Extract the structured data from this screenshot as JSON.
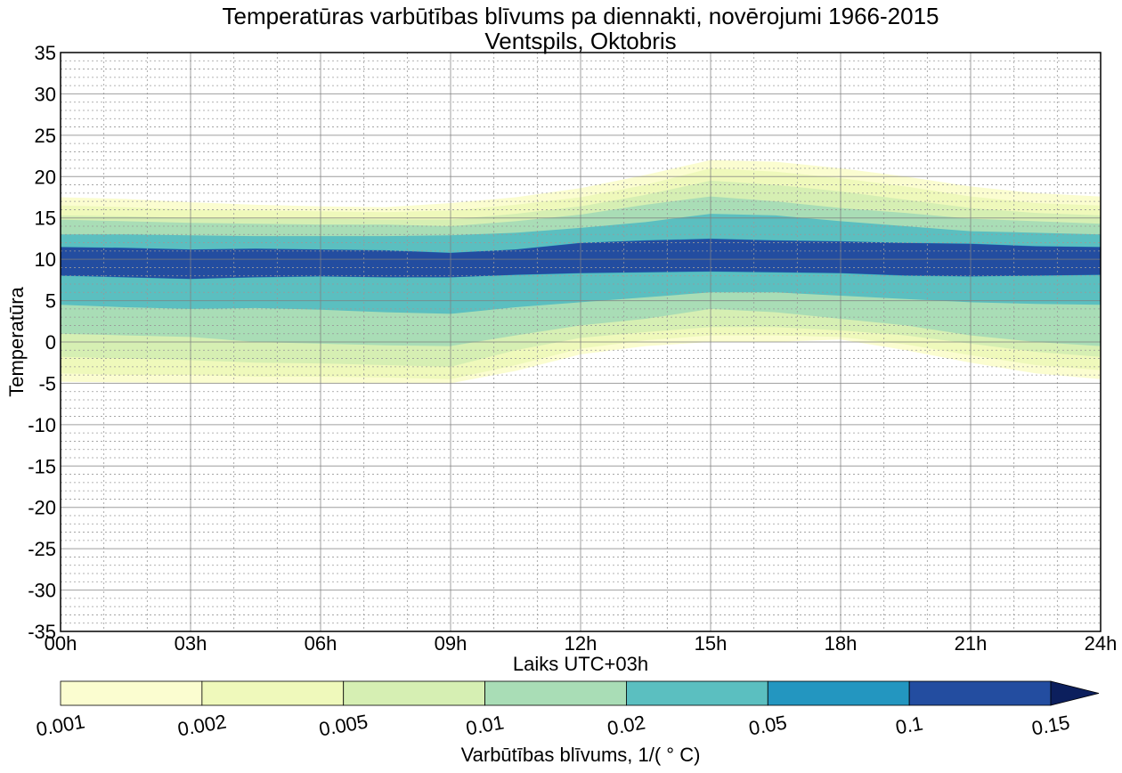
{
  "chart_data": {
    "type": "contourf",
    "title": "Temperatūras varbūtības blīvums pa diennakti, novērojumi 1966-2015",
    "subtitle": "Ventspils, Oktobris",
    "xlabel": "Laiks UTC+03h",
    "ylabel": "Temperatūra",
    "xlim": [
      0,
      24
    ],
    "ylim": [
      -35,
      35
    ],
    "x_ticks": [
      0,
      3,
      6,
      9,
      12,
      15,
      18,
      21,
      24
    ],
    "x_tick_labels": [
      "00h",
      "03h",
      "06h",
      "09h",
      "12h",
      "15h",
      "18h",
      "21h",
      "24h"
    ],
    "y_ticks": [
      -35,
      -30,
      -25,
      -20,
      -15,
      -10,
      -5,
      0,
      5,
      10,
      15,
      20,
      25,
      30,
      35
    ],
    "y_tick_labels": [
      "-35",
      "-30",
      "-25",
      "-20",
      "-15",
      "-10",
      "-5",
      "0",
      "5",
      "10",
      "15",
      "20",
      "25",
      "30",
      "35"
    ],
    "grid": "major solid, minor dotted",
    "colorbar": {
      "label": "Varbūtības blīvums, 1/( ° C)",
      "levels": [
        0.001,
        0.002,
        0.005,
        0.01,
        0.02,
        0.05,
        0.1,
        0.15
      ],
      "tick_labels": [
        "0.001",
        "0.002",
        "0.005",
        "0.01",
        "0.02",
        "0.05",
        "0.1",
        "0.15"
      ],
      "colors": [
        "#fbfdd0",
        "#eff9bb",
        "#d6efb3",
        "#a9ddb6",
        "#5bbfc0",
        "#2396c0",
        "#234da0"
      ],
      "extend_color": "#0c1f5d",
      "orientation": "horizontal",
      "placement": "bottom"
    },
    "times_h": [
      0,
      1.5,
      3,
      4.5,
      6,
      7.5,
      9,
      10.5,
      12,
      13.5,
      15,
      16.5,
      18,
      19.5,
      21,
      22.5,
      24
    ],
    "contour_bounds": [
      {
        "level": 0.001,
        "upper": [
          17.5,
          17.3,
          16.9,
          16.6,
          16.4,
          16.3,
          16.8,
          17.5,
          18.6,
          20.2,
          22.0,
          21.8,
          21.0,
          20.0,
          18.8,
          18.0,
          17.6
        ],
        "lower": [
          -4.8,
          -4.9,
          -5.0,
          -5.0,
          -5.0,
          -5.0,
          -5.0,
          -3.5,
          -1.5,
          -0.5,
          0.0,
          0.0,
          0.3,
          -1.0,
          -2.5,
          -3.8,
          -4.5
        ]
      },
      {
        "level": 0.002,
        "upper": [
          16.5,
          16.3,
          16.0,
          15.9,
          15.8,
          15.7,
          15.9,
          16.6,
          17.5,
          19.0,
          21.0,
          20.6,
          19.8,
          18.8,
          17.6,
          16.8,
          16.5
        ],
        "lower": [
          -3.8,
          -4.0,
          -4.0,
          -4.2,
          -4.2,
          -4.3,
          -4.5,
          -2.8,
          -0.8,
          0.2,
          0.8,
          0.8,
          0.6,
          -0.3,
          -1.6,
          -2.8,
          -3.4
        ]
      },
      {
        "level": 0.005,
        "upper": [
          15.3,
          15.2,
          15.0,
          14.9,
          14.9,
          14.8,
          14.8,
          15.5,
          16.4,
          17.8,
          19.5,
          19.0,
          18.2,
          17.2,
          16.2,
          15.6,
          15.3
        ],
        "lower": [
          -1.8,
          -2.0,
          -2.2,
          -2.5,
          -2.6,
          -2.8,
          -3.0,
          -1.0,
          0.5,
          1.2,
          1.8,
          1.8,
          1.4,
          0.8,
          -0.2,
          -1.2,
          -1.8
        ]
      },
      {
        "level": 0.01,
        "upper": [
          14.8,
          14.6,
          14.4,
          14.3,
          14.2,
          14.2,
          14.0,
          14.6,
          15.4,
          16.6,
          17.6,
          17.0,
          16.2,
          15.6,
          14.9,
          14.6,
          14.3
        ],
        "lower": [
          1.0,
          0.8,
          0.6,
          0.0,
          -0.2,
          -0.4,
          -0.5,
          0.8,
          2.0,
          2.8,
          4.0,
          3.6,
          2.8,
          2.0,
          0.8,
          0.0,
          -0.5
        ]
      },
      {
        "level": 0.02,
        "upper": [
          13.0,
          13.0,
          12.9,
          12.8,
          12.8,
          12.8,
          12.9,
          13.2,
          13.8,
          14.5,
          15.5,
          15.3,
          14.6,
          14.0,
          13.4,
          13.2,
          13.0
        ],
        "lower": [
          4.5,
          4.2,
          4.0,
          4.1,
          3.9,
          3.6,
          3.4,
          4.2,
          4.8,
          5.4,
          6.0,
          6.0,
          5.6,
          5.2,
          4.8,
          4.6,
          4.5
        ]
      },
      {
        "level": 0.05,
        "upper": [
          11.5,
          11.4,
          11.2,
          11.3,
          11.2,
          11.1,
          10.8,
          11.2,
          12.0,
          12.3,
          12.5,
          12.3,
          12.2,
          12.0,
          11.9,
          11.6,
          11.5
        ],
        "lower": [
          8.0,
          7.8,
          7.6,
          7.8,
          7.9,
          7.8,
          7.8,
          8.1,
          8.3,
          8.4,
          8.5,
          8.4,
          8.3,
          8.0,
          7.9,
          8.0,
          8.1
        ]
      },
      {
        "level": 0.1,
        "upper": [],
        "lower": []
      }
    ]
  }
}
